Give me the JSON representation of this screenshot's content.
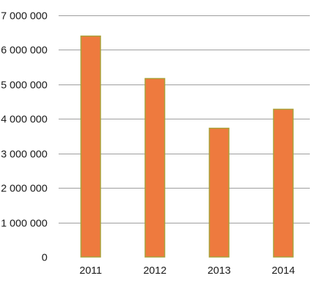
{
  "chart_data": {
    "type": "bar",
    "categories": [
      "2011",
      "2012",
      "2013",
      "2014"
    ],
    "values": [
      6400000,
      5170000,
      3730000,
      4280000
    ],
    "y_ticks": [
      {
        "value": 0,
        "label": "0"
      },
      {
        "value": 1000000,
        "label": "1 000 000"
      },
      {
        "value": 2000000,
        "label": "2 000 000"
      },
      {
        "value": 3000000,
        "label": "3 000 000"
      },
      {
        "value": 4000000,
        "label": "4 000 000"
      },
      {
        "value": 5000000,
        "label": "5 000 000"
      },
      {
        "value": 6000000,
        "label": "6 000 000"
      },
      {
        "value": 7000000,
        "label": "7 000 000"
      }
    ],
    "ylim": [
      0,
      7000000
    ],
    "grid": true,
    "legend": "none",
    "title": "",
    "xlabel": "",
    "ylabel": "",
    "colors": {
      "bar_fill": "#ee7a3e",
      "bar_edge": "#a8a23a",
      "grid": "#9a9a9a",
      "text": "#1a1a1a"
    }
  }
}
